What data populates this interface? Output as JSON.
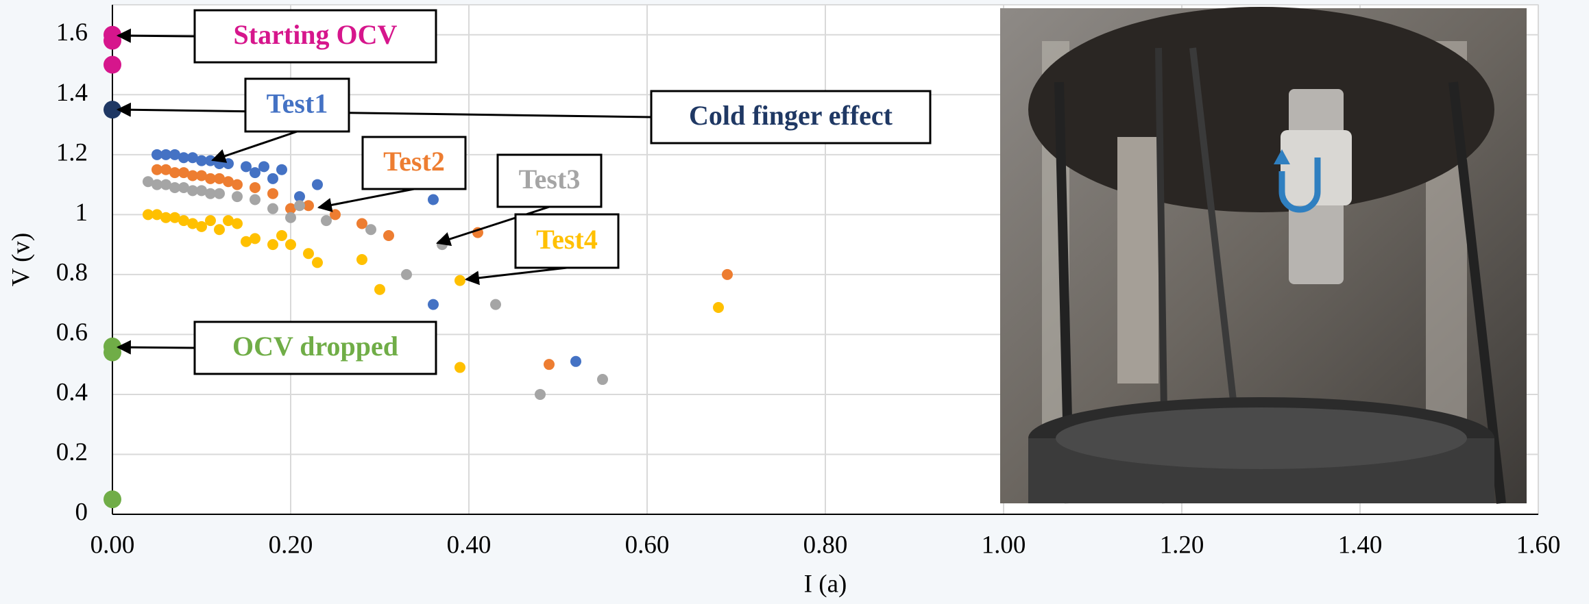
{
  "chart_data": {
    "type": "scatter",
    "x_label": "I (a)",
    "y_label": "V (v)",
    "xlim": [
      0,
      1.6
    ],
    "ylim": [
      0,
      1.7
    ],
    "xticks": [
      {
        "value": 0,
        "label": "0.00"
      },
      {
        "value": 0.2,
        "label": "0.20"
      },
      {
        "value": 0.4,
        "label": "0.40"
      },
      {
        "value": 0.6,
        "label": "0.60"
      },
      {
        "value": 0.8,
        "label": "0.80"
      },
      {
        "value": 1.0,
        "label": "1.00"
      },
      {
        "value": 1.2,
        "label": "1.20"
      },
      {
        "value": 1.4,
        "label": "1.40"
      },
      {
        "value": 1.6,
        "label": "1.60"
      }
    ],
    "yticks": [
      0,
      0.2,
      0.4,
      0.6,
      0.8,
      1,
      1.2,
      1.4,
      1.6
    ],
    "grid": true,
    "series": [
      {
        "name": "Starting OCV",
        "color": "#d6168c",
        "x": [
          0,
          0,
          0
        ],
        "values": [
          1.6,
          1.58,
          1.5
        ]
      },
      {
        "name": "Cold finger effect",
        "color": "#1f3864",
        "x": [
          0
        ],
        "values": [
          1.35
        ]
      },
      {
        "name": "OCV dropped",
        "color": "#70ad47",
        "x": [
          0,
          0,
          0
        ],
        "values": [
          0.56,
          0.54,
          0.05
        ]
      },
      {
        "name": "Test1",
        "color": "#4472c4",
        "x": [
          0.05,
          0.06,
          0.07,
          0.08,
          0.09,
          0.1,
          0.11,
          0.12,
          0.13,
          0.15,
          0.17,
          0.16,
          0.19,
          0.18,
          0.21,
          0.23,
          0.36,
          0.36,
          0.52
        ],
        "values": [
          1.2,
          1.2,
          1.2,
          1.19,
          1.19,
          1.18,
          1.18,
          1.17,
          1.17,
          1.16,
          1.16,
          1.14,
          1.15,
          1.12,
          1.06,
          1.1,
          1.05,
          0.7,
          0.51
        ]
      },
      {
        "name": "Test2",
        "color": "#ed7d31",
        "x": [
          0.05,
          0.06,
          0.07,
          0.08,
          0.09,
          0.1,
          0.11,
          0.12,
          0.13,
          0.14,
          0.16,
          0.18,
          0.2,
          0.22,
          0.25,
          0.28,
          0.31,
          0.41,
          0.49,
          0.69
        ],
        "values": [
          1.15,
          1.15,
          1.14,
          1.14,
          1.13,
          1.13,
          1.12,
          1.12,
          1.11,
          1.1,
          1.09,
          1.07,
          1.02,
          1.03,
          1.0,
          0.97,
          0.93,
          0.94,
          0.5,
          0.8
        ]
      },
      {
        "name": "Test3",
        "color": "#a5a5a5",
        "x": [
          0.04,
          0.05,
          0.06,
          0.07,
          0.08,
          0.09,
          0.1,
          0.11,
          0.12,
          0.14,
          0.16,
          0.18,
          0.2,
          0.21,
          0.24,
          0.29,
          0.33,
          0.37,
          0.43,
          0.48,
          0.55
        ],
        "values": [
          1.11,
          1.1,
          1.1,
          1.09,
          1.09,
          1.08,
          1.08,
          1.07,
          1.07,
          1.06,
          1.05,
          1.02,
          0.99,
          1.03,
          0.98,
          0.95,
          0.8,
          0.9,
          0.7,
          0.4,
          0.45
        ]
      },
      {
        "name": "Test4",
        "color": "#ffc000",
        "x": [
          0.04,
          0.05,
          0.06,
          0.07,
          0.08,
          0.09,
          0.1,
          0.11,
          0.12,
          0.13,
          0.14,
          0.15,
          0.16,
          0.18,
          0.19,
          0.2,
          0.22,
          0.23,
          0.28,
          0.3,
          0.39,
          0.39,
          0.68
        ],
        "values": [
          1.0,
          1.0,
          0.99,
          0.99,
          0.98,
          0.97,
          0.96,
          0.98,
          0.95,
          0.98,
          0.97,
          0.91,
          0.92,
          0.9,
          0.93,
          0.9,
          0.87,
          0.84,
          0.85,
          0.75,
          0.78,
          0.49,
          0.69
        ]
      }
    ]
  }
}
